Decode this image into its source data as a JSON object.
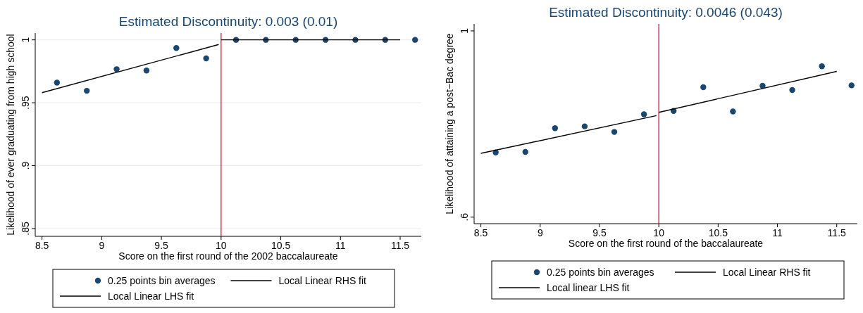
{
  "chart_data": [
    {
      "type": "scatter",
      "title": "Estimated Discontinuity: 0.003 (0.01)",
      "xlabel": "Score on the first round of the 2002 baccalaureate",
      "ylabel": "Likelihood of ever graduating from high school",
      "xlim": [
        8.443,
        11.677
      ],
      "xticks": [
        8.5,
        9,
        9.5,
        10,
        10.5,
        11,
        11.5
      ],
      "ylim": [
        0.8438,
        1.0054
      ],
      "yticks": [
        {
          "value": 0.85,
          "label": ".85"
        },
        {
          "value": 0.9,
          "label": ".9"
        },
        {
          "value": 0.95,
          "label": ".95"
        },
        1
      ],
      "grid": "y",
      "legend": "bottom",
      "ref_lines": [
        {
          "axis": "x",
          "value": 10,
          "color": "#d2143a"
        }
      ],
      "series": [
        {
          "name": "0.25 points bin averages",
          "marker": "circle",
          "color": "#1a476f",
          "x": [
            8.625,
            8.875,
            9.125,
            9.375,
            9.625,
            9.875,
            10.125,
            10.375,
            10.625,
            10.875,
            11.125,
            11.375,
            11.625
          ],
          "values": [
            0.966,
            0.9595,
            0.9767,
            0.9756,
            0.9935,
            0.9853,
            1,
            1,
            1,
            1,
            1,
            1,
            1
          ]
        },
        {
          "name": "Local Linear RHS fit",
          "type": "line",
          "color": "#000000",
          "x": [
            10,
            11.5
          ],
          "values": [
            1,
            1
          ]
        },
        {
          "name": "Local Linear LHS fit",
          "type": "line",
          "color": "#000000",
          "x": [
            8.5,
            9.98
          ],
          "values": [
            0.958,
            0.9963
          ]
        }
      ]
    },
    {
      "type": "scatter",
      "title": "Estimated Discontinuity: 0.0046 (0.043)",
      "xlabel": "Score on the first round of the baccalaureate",
      "ylabel": "Likelihood of attaining a post−Bac degree",
      "xlim": [
        8.443,
        11.674
      ],
      "xticks": [
        8.5,
        9,
        9.5,
        10,
        10.5,
        11,
        11.5
      ],
      "ylim": [
        0.586,
        1.015
      ],
      "yticks": [
        {
          "value": 0.6,
          "label": ".6"
        },
        1
      ],
      "legend": "bottom",
      "ref_lines": [
        {
          "axis": "x",
          "value": 10,
          "color": "#d2143a"
        }
      ],
      "series": [
        {
          "name": "0.25 points bin averages",
          "marker": "circle",
          "color": "#1a476f",
          "x": [
            8.625,
            8.875,
            9.125,
            9.375,
            9.625,
            9.875,
            10.125,
            10.375,
            10.625,
            10.875,
            11.125,
            11.375,
            11.625
          ],
          "values": [
            0.739,
            0.74,
            0.791,
            0.795,
            0.783,
            0.821,
            0.828,
            0.879,
            0.827,
            0.882,
            0.873,
            0.924,
            0.883
          ]
        },
        {
          "name": "Local Linear RHS fit",
          "type": "line",
          "color": "#000000",
          "x": [
            10,
            11.5
          ],
          "values": [
            0.825,
            0.913
          ]
        },
        {
          "name": "Local linear LHS fit",
          "type": "line",
          "color": "#000000",
          "x": [
            8.5,
            9.98
          ],
          "values": [
            0.737,
            0.818
          ]
        }
      ]
    }
  ]
}
